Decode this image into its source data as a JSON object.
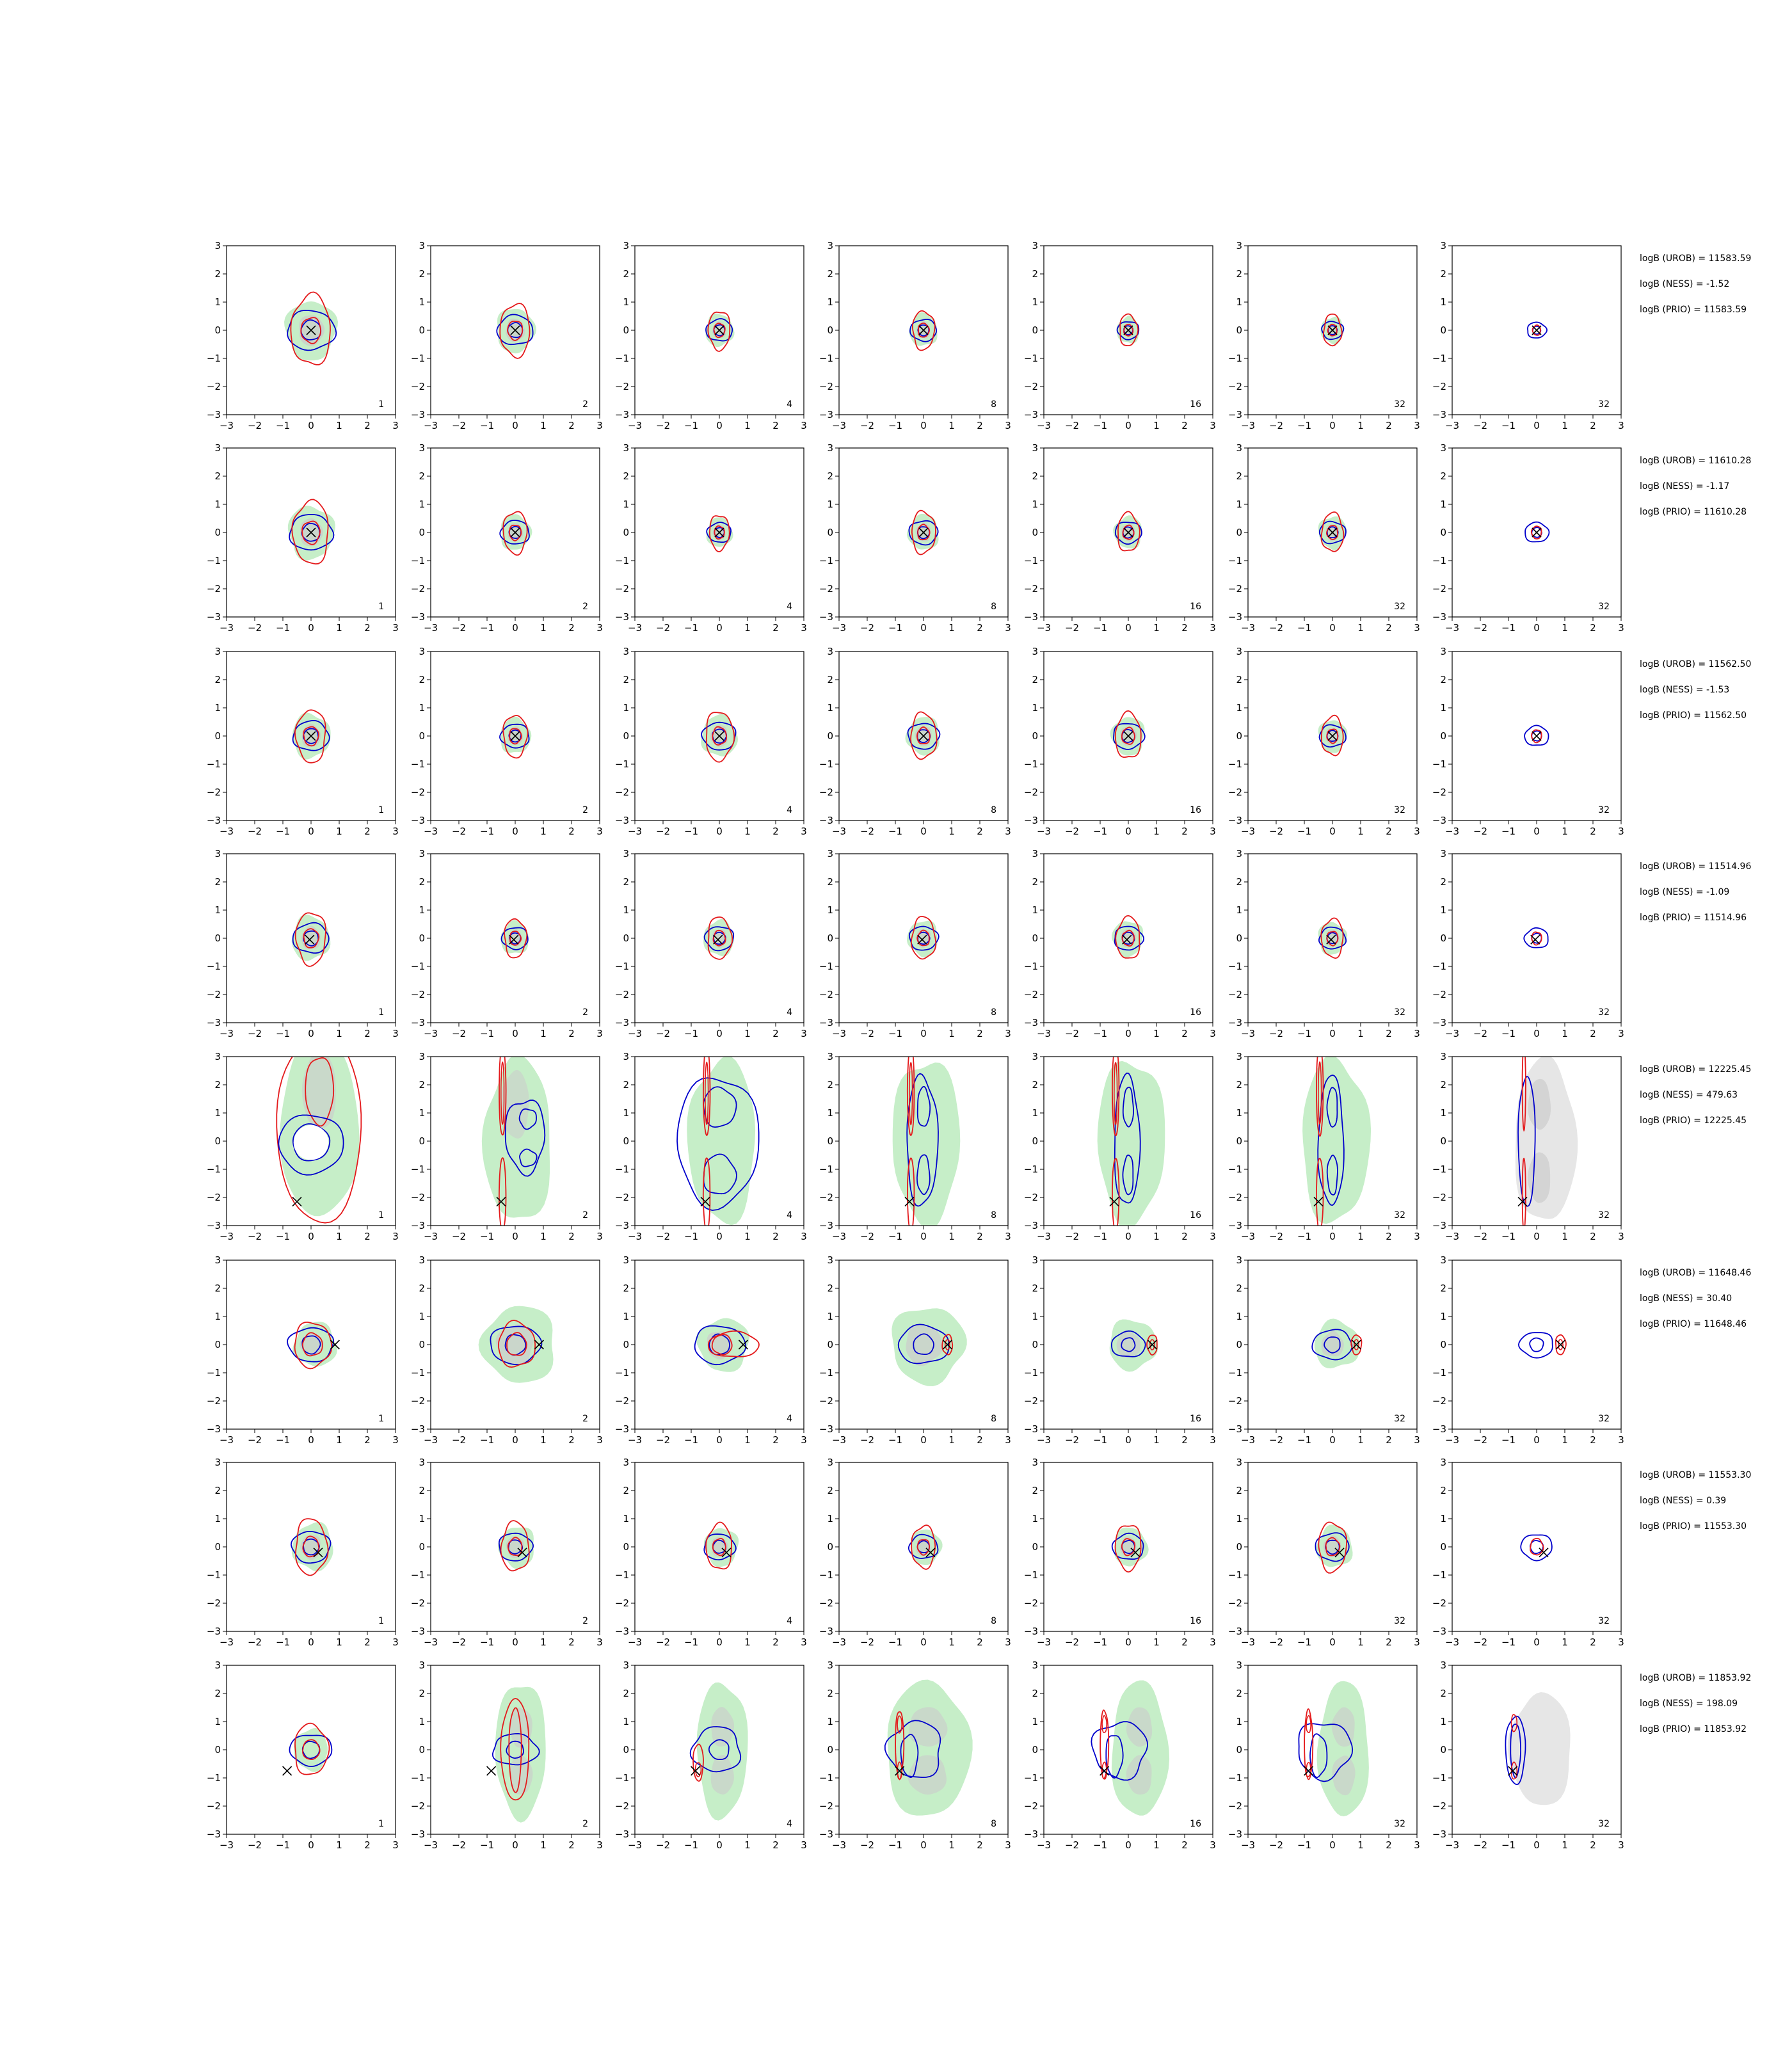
{
  "chart_data": {
    "type": "contour",
    "grid": {
      "rows": 8,
      "cols": 7
    },
    "axes": {
      "xlim": [
        -3,
        3
      ],
      "ylim": [
        -3,
        3
      ],
      "ticks": [
        -3,
        -2,
        -1,
        0,
        1,
        2,
        3
      ],
      "tick_labels": [
        "−3",
        "−2",
        "−1",
        "0",
        "1",
        "2",
        "3"
      ]
    },
    "colors": {
      "red_contour": "#e41a1c",
      "blue_contour": "#0000cc",
      "green_fill": "#c6eec8",
      "grey_fill": "#cccccc",
      "light_grey_fill": "#e6e6e6",
      "marker": "#000000"
    },
    "columns": [
      {
        "annotation": "1"
      },
      {
        "annotation": "2"
      },
      {
        "annotation": "4"
      },
      {
        "annotation": "8"
      },
      {
        "annotation": "16"
      },
      {
        "annotation": "32"
      },
      {
        "annotation": "32"
      }
    ],
    "rows": [
      {
        "kind": "round",
        "marker": [
          0,
          0
        ],
        "scale": [
          1.0,
          0.75,
          0.55,
          0.55,
          0.45,
          0.45,
          0.4
        ],
        "info": [
          "logB (UROB) = 11583.59",
          "logB (NESS) = -1.52",
          "logB (PRIO) = 11583.59"
        ]
      },
      {
        "kind": "round",
        "marker": [
          0,
          0
        ],
        "scale": [
          0.9,
          0.6,
          0.5,
          0.6,
          0.55,
          0.55,
          0.5
        ],
        "info": [
          "logB (UROB) = 11610.28",
          "logB (NESS) = -1.17",
          "logB (PRIO) = 11610.28"
        ]
      },
      {
        "kind": "round",
        "marker": [
          0,
          0
        ],
        "scale": [
          0.75,
          0.6,
          0.7,
          0.65,
          0.65,
          0.55,
          0.5
        ],
        "info": [
          "logB (UROB) = 11562.50",
          "logB (NESS) = -1.53",
          "logB (PRIO) = 11562.50"
        ]
      },
      {
        "kind": "round",
        "marker": [
          -0.05,
          -0.05
        ],
        "scale": [
          0.75,
          0.55,
          0.6,
          0.6,
          0.6,
          0.55,
          0.5
        ],
        "info": [
          "logB (UROB) = 11514.96",
          "logB (NESS) = -1.09",
          "logB (PRIO) = 11514.96"
        ]
      },
      {
        "kind": "bimodal-low",
        "marker": [
          -0.5,
          -2.15
        ],
        "info": [
          "logB (UROB) = 12225.45",
          "logB (NESS) = 479.63",
          "logB (PRIO) = 12225.45"
        ]
      },
      {
        "kind": "offset-right",
        "marker": [
          0.85,
          0.0
        ],
        "info": [
          "logB (UROB) = 11648.46",
          "logB (NESS) = 30.40",
          "logB (PRIO) = 11648.46"
        ]
      },
      {
        "kind": "round-offset",
        "marker": [
          0.25,
          -0.2
        ],
        "scale": [
          0.8,
          0.7,
          0.65,
          0.6,
          0.65,
          0.7,
          0.65
        ],
        "info": [
          "logB (UROB) = 11553.30",
          "logB (NESS) = 0.39",
          "logB (PRIO) = 11553.30"
        ]
      },
      {
        "kind": "bimodal-left",
        "marker": [
          -0.85,
          -0.75
        ],
        "info": [
          "logB (UROB) = 11853.92",
          "logB (NESS) = 198.09",
          "logB (PRIO) = 11853.92"
        ]
      }
    ]
  }
}
